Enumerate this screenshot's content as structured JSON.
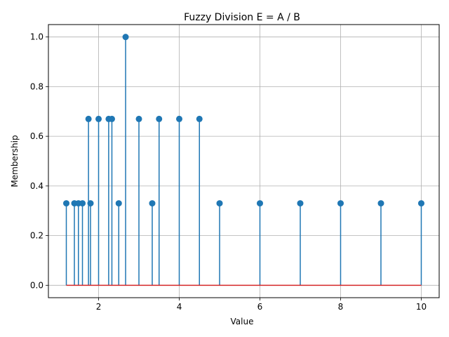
{
  "chart_data": {
    "type": "stem",
    "title": "Fuzzy Division E = A / B",
    "xlabel": "Value",
    "ylabel": "Membership",
    "xlim": [
      0.756,
      10.444
    ],
    "ylim": [
      -0.05,
      1.05
    ],
    "xticks": [
      2,
      4,
      6,
      8,
      10
    ],
    "xtick_labels": [
      "2",
      "4",
      "6",
      "8",
      "10"
    ],
    "yticks": [
      0.0,
      0.2,
      0.4,
      0.6,
      0.8,
      1.0
    ],
    "ytick_labels": [
      "0.0",
      "0.2",
      "0.4",
      "0.6",
      "0.8",
      "1.0"
    ],
    "grid": true,
    "baseline": 0,
    "colors": {
      "stem": "#1f77b4",
      "marker": "#1f77b4",
      "baseline": "#d62728",
      "grid": "#b0b0b0"
    },
    "points": [
      {
        "x": 1.2,
        "y": 0.33
      },
      {
        "x": 1.4,
        "y": 0.33
      },
      {
        "x": 1.5,
        "y": 0.33
      },
      {
        "x": 1.6,
        "y": 0.33
      },
      {
        "x": 1.75,
        "y": 0.67
      },
      {
        "x": 1.8,
        "y": 0.33
      },
      {
        "x": 2.0,
        "y": 0.67
      },
      {
        "x": 2.25,
        "y": 0.67
      },
      {
        "x": 2.33,
        "y": 0.67
      },
      {
        "x": 2.5,
        "y": 0.33
      },
      {
        "x": 2.67,
        "y": 1.0
      },
      {
        "x": 3.0,
        "y": 0.67
      },
      {
        "x": 3.33,
        "y": 0.33
      },
      {
        "x": 3.5,
        "y": 0.67
      },
      {
        "x": 4.0,
        "y": 0.67
      },
      {
        "x": 4.5,
        "y": 0.67
      },
      {
        "x": 5.0,
        "y": 0.33
      },
      {
        "x": 6.0,
        "y": 0.33
      },
      {
        "x": 7.0,
        "y": 0.33
      },
      {
        "x": 8.0,
        "y": 0.33
      },
      {
        "x": 9.0,
        "y": 0.33
      },
      {
        "x": 10.0,
        "y": 0.33
      }
    ]
  }
}
